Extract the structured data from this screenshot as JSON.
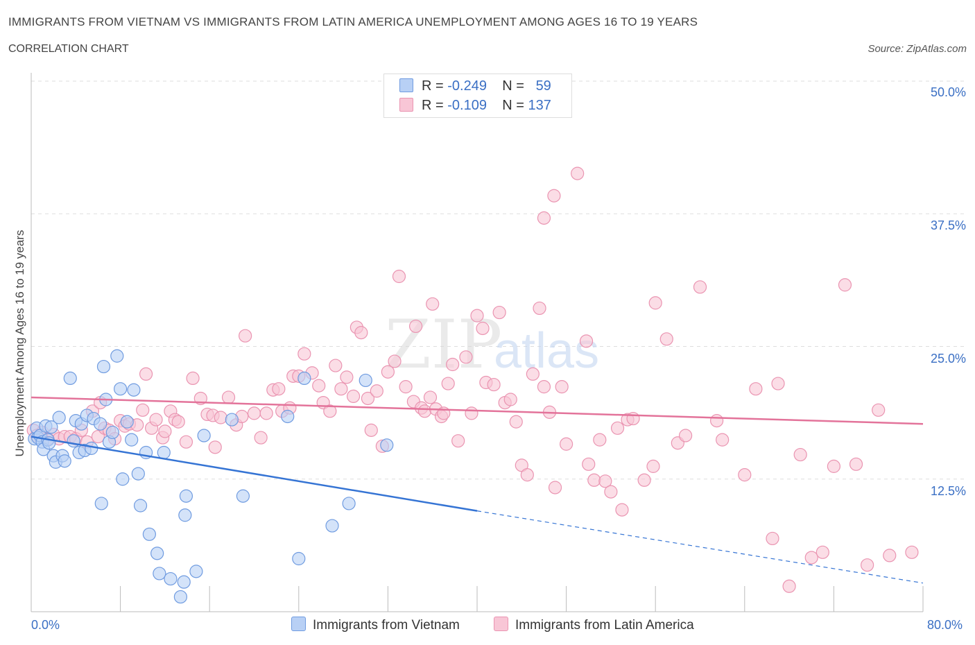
{
  "header": {
    "title": "IMMIGRANTS FROM VIETNAM VS IMMIGRANTS FROM LATIN AMERICA UNEMPLOYMENT AMONG AGES 16 TO 19 YEARS",
    "subtitle": "CORRELATION CHART",
    "source": "Source: ZipAtlas.com"
  },
  "legend": {
    "vietnam": {
      "r_label": "R =",
      "r_value": "-0.249",
      "n_label": "N =",
      "n_value": "59"
    },
    "latin": {
      "r_label": "R =",
      "r_value": "-0.109",
      "n_label": "N =",
      "n_value": "137"
    }
  },
  "colors": {
    "vietnam_fill": "#b8d0f5",
    "vietnam_stroke": "#6f9be0",
    "vietnam_line": "#3574d4",
    "latin_fill": "#f8c6d6",
    "latin_stroke": "#ea94b1",
    "latin_line": "#e3739a",
    "tick_text": "#3a6fc4"
  },
  "chart_data": {
    "type": "scatter",
    "title": "IMMIGRANTS FROM VIETNAM VS IMMIGRANTS FROM LATIN AMERICA UNEMPLOYMENT AMONG AGES 16 TO 19 YEARS",
    "subtitle": "CORRELATION CHART",
    "xlabel": "",
    "ylabel": "Unemployment Among Ages 16 to 19 years",
    "xlim": [
      0,
      80
    ],
    "ylim": [
      0,
      50
    ],
    "x_tick_labels": [
      "0.0%",
      "80.0%"
    ],
    "y_tick_labels": [
      "12.5%",
      "25.0%",
      "37.5%",
      "50.0%"
    ],
    "y_ticks": [
      12.5,
      25,
      37.5,
      50
    ],
    "grid": "horizontal dashed",
    "legend_position": "top-center",
    "watermark": "ZIPatlas",
    "series": [
      {
        "name": "Immigrants from Vietnam",
        "r": -0.249,
        "n": 59,
        "trend": {
          "x0": 0,
          "y0": 16.5,
          "x1": 40,
          "y1": 9.5,
          "dash_to_x": 80,
          "dash_to_y": 2.7
        },
        "points": [
          [
            0.3,
            16.3
          ],
          [
            0.5,
            17.3
          ],
          [
            0.6,
            16.4
          ],
          [
            0.8,
            16.6
          ],
          [
            1.0,
            16.0
          ],
          [
            1.1,
            15.3
          ],
          [
            1.3,
            17.5
          ],
          [
            1.5,
            16.2
          ],
          [
            1.6,
            15.9
          ],
          [
            1.8,
            17.4
          ],
          [
            2.0,
            14.7
          ],
          [
            2.2,
            14.1
          ],
          [
            2.5,
            18.3
          ],
          [
            2.8,
            14.7
          ],
          [
            3.0,
            14.2
          ],
          [
            3.5,
            22.0
          ],
          [
            3.8,
            16.1
          ],
          [
            4.0,
            18.0
          ],
          [
            4.3,
            15.0
          ],
          [
            4.5,
            17.7
          ],
          [
            4.8,
            15.2
          ],
          [
            5.0,
            18.5
          ],
          [
            5.4,
            15.4
          ],
          [
            5.6,
            18.2
          ],
          [
            6.2,
            17.7
          ],
          [
            6.3,
            10.2
          ],
          [
            6.5,
            23.1
          ],
          [
            6.7,
            20.0
          ],
          [
            7.0,
            16.0
          ],
          [
            7.3,
            16.9
          ],
          [
            7.7,
            24.1
          ],
          [
            8.0,
            21.0
          ],
          [
            8.2,
            12.5
          ],
          [
            8.6,
            17.9
          ],
          [
            9.0,
            16.2
          ],
          [
            9.2,
            20.9
          ],
          [
            9.6,
            13.0
          ],
          [
            9.8,
            10.0
          ],
          [
            10.3,
            15.0
          ],
          [
            10.6,
            7.3
          ],
          [
            11.3,
            5.5
          ],
          [
            11.5,
            3.6
          ],
          [
            11.9,
            15.0
          ],
          [
            12.5,
            3.1
          ],
          [
            13.4,
            1.4
          ],
          [
            13.7,
            2.8
          ],
          [
            13.8,
            9.1
          ],
          [
            13.9,
            10.9
          ],
          [
            14.8,
            3.8
          ],
          [
            15.5,
            16.6
          ],
          [
            18.0,
            18.1
          ],
          [
            19.0,
            10.9
          ],
          [
            23.0,
            18.4
          ],
          [
            24.0,
            5.0
          ],
          [
            24.5,
            22.0
          ],
          [
            27.0,
            8.1
          ],
          [
            28.5,
            10.2
          ],
          [
            30.0,
            21.8
          ],
          [
            31.9,
            15.7
          ]
        ]
      },
      {
        "name": "Immigrants from Latin America",
        "r": -0.109,
        "n": 137,
        "trend": {
          "x0": 0,
          "y0": 20.2,
          "x1": 80,
          "y1": 17.7
        },
        "points": [
          [
            0.2,
            17.1
          ],
          [
            0.5,
            16.6
          ],
          [
            1.0,
            16.9
          ],
          [
            1.5,
            16.3
          ],
          [
            2.0,
            16.7
          ],
          [
            2.5,
            16.3
          ],
          [
            3.0,
            16.5
          ],
          [
            3.5,
            16.5
          ],
          [
            4.0,
            16.3
          ],
          [
            4.5,
            17.1
          ],
          [
            5.0,
            16.0
          ],
          [
            5.5,
            18.9
          ],
          [
            6.0,
            16.5
          ],
          [
            6.2,
            19.7
          ],
          [
            6.6,
            17.3
          ],
          [
            7.0,
            17.1
          ],
          [
            7.5,
            16.3
          ],
          [
            8.0,
            18.0
          ],
          [
            8.4,
            17.5
          ],
          [
            8.8,
            17.7
          ],
          [
            9.5,
            17.6
          ],
          [
            10.0,
            19.0
          ],
          [
            10.3,
            22.4
          ],
          [
            10.8,
            17.3
          ],
          [
            11.2,
            18.1
          ],
          [
            11.8,
            16.4
          ],
          [
            12.0,
            17.0
          ],
          [
            12.5,
            18.9
          ],
          [
            12.9,
            18.1
          ],
          [
            13.2,
            17.9
          ],
          [
            13.9,
            16.0
          ],
          [
            14.5,
            22.0
          ],
          [
            15.2,
            20.1
          ],
          [
            15.8,
            18.6
          ],
          [
            16.3,
            18.5
          ],
          [
            16.5,
            15.5
          ],
          [
            17.0,
            18.3
          ],
          [
            17.7,
            20.2
          ],
          [
            18.4,
            17.6
          ],
          [
            18.9,
            18.4
          ],
          [
            19.2,
            26.0
          ],
          [
            20.0,
            18.7
          ],
          [
            20.6,
            16.4
          ],
          [
            21.1,
            18.7
          ],
          [
            21.7,
            20.9
          ],
          [
            22.2,
            21.0
          ],
          [
            22.5,
            18.9
          ],
          [
            23.2,
            19.2
          ],
          [
            23.5,
            22.2
          ],
          [
            24.0,
            22.2
          ],
          [
            24.5,
            24.3
          ],
          [
            25.2,
            22.5
          ],
          [
            25.8,
            21.3
          ],
          [
            26.2,
            19.7
          ],
          [
            26.8,
            18.9
          ],
          [
            27.3,
            23.2
          ],
          [
            27.8,
            21.0
          ],
          [
            28.3,
            22.1
          ],
          [
            28.9,
            20.3
          ],
          [
            29.2,
            26.8
          ],
          [
            29.6,
            26.3
          ],
          [
            30.2,
            20.1
          ],
          [
            30.5,
            17.1
          ],
          [
            31.0,
            20.8
          ],
          [
            31.5,
            15.6
          ],
          [
            32.0,
            22.6
          ],
          [
            32.6,
            23.6
          ],
          [
            33.0,
            31.6
          ],
          [
            33.6,
            21.2
          ],
          [
            34.3,
            19.8
          ],
          [
            34.5,
            26.9
          ],
          [
            35.0,
            19.2
          ],
          [
            35.3,
            18.9
          ],
          [
            35.8,
            20.2
          ],
          [
            36.0,
            29.0
          ],
          [
            36.3,
            19.1
          ],
          [
            36.8,
            18.4
          ],
          [
            37.0,
            18.7
          ],
          [
            37.4,
            21.5
          ],
          [
            37.8,
            23.3
          ],
          [
            38.3,
            16.1
          ],
          [
            39.0,
            24.0
          ],
          [
            39.5,
            18.7
          ],
          [
            40.0,
            27.9
          ],
          [
            40.5,
            26.7
          ],
          [
            40.8,
            21.6
          ],
          [
            41.5,
            21.4
          ],
          [
            42.0,
            28.2
          ],
          [
            42.5,
            19.7
          ],
          [
            43.0,
            20.0
          ],
          [
            43.5,
            17.9
          ],
          [
            44.0,
            13.8
          ],
          [
            44.5,
            12.9
          ],
          [
            45.0,
            22.4
          ],
          [
            46.0,
            21.2
          ],
          [
            46.5,
            18.8
          ],
          [
            47.0,
            11.7
          ],
          [
            46.0,
            37.1
          ],
          [
            46.9,
            39.2
          ],
          [
            47.6,
            21.2
          ],
          [
            48.0,
            15.8
          ],
          [
            49.0,
            41.3
          ],
          [
            50.0,
            13.9
          ],
          [
            50.5,
            12.4
          ],
          [
            51.0,
            16.2
          ],
          [
            51.5,
            12.3
          ],
          [
            52.0,
            11.3
          ],
          [
            53.0,
            9.6
          ],
          [
            53.5,
            18.1
          ],
          [
            54.0,
            18.2
          ],
          [
            55.0,
            12.4
          ],
          [
            56.0,
            29.1
          ],
          [
            57.0,
            25.7
          ],
          [
            58.0,
            15.9
          ],
          [
            58.7,
            16.6
          ],
          [
            60.0,
            30.6
          ],
          [
            61.5,
            18.0
          ],
          [
            62.0,
            16.2
          ],
          [
            64.0,
            12.9
          ],
          [
            65.0,
            21.0
          ],
          [
            66.5,
            6.9
          ],
          [
            67.0,
            21.5
          ],
          [
            68.0,
            2.4
          ],
          [
            69.0,
            14.8
          ],
          [
            70.0,
            5.1
          ],
          [
            71.0,
            5.6
          ],
          [
            72.0,
            13.7
          ],
          [
            73.0,
            30.8
          ],
          [
            74.0,
            13.9
          ],
          [
            75.0,
            4.4
          ],
          [
            76.0,
            19.0
          ],
          [
            77.0,
            5.3
          ],
          [
            79.0,
            5.6
          ],
          [
            55.8,
            13.7
          ],
          [
            45.6,
            28.6
          ],
          [
            49.8,
            25.5
          ],
          [
            52.6,
            17.3
          ]
        ]
      }
    ]
  },
  "axis": {
    "x_left": "0.0%",
    "x_right": "80.0%",
    "y_label": "Unemployment Among Ages 16 to 19 years",
    "y_ticks": [
      "50.0%",
      "37.5%",
      "25.0%",
      "12.5%"
    ]
  },
  "bottom_legend": {
    "vietnam": "Immigrants from Vietnam",
    "latin": "Immigrants from Latin America"
  },
  "watermark": {
    "zip": "ZIP",
    "atlas": "atlas"
  }
}
